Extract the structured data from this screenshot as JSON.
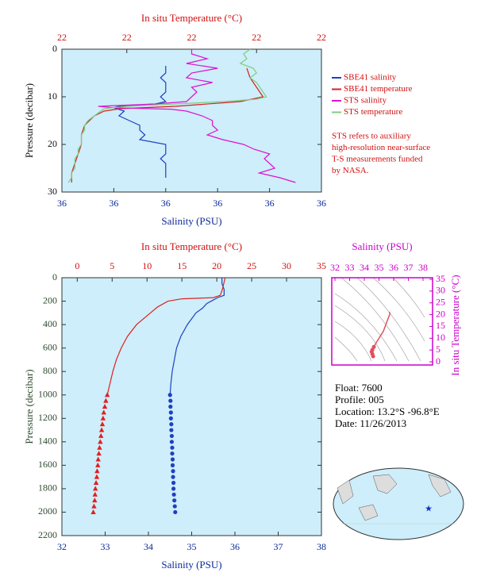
{
  "chart_data": [
    {
      "type": "profile",
      "x2label": "In situ Temperature (°C)",
      "xlabel": "Salinity (PSU)",
      "ylabel": "Pressure (decibar)",
      "ylim": [
        0,
        30
      ],
      "yticks": [
        0,
        10,
        20,
        30
      ],
      "xlim": [
        35.75,
        36.25
      ],
      "xticks": [
        {
          "value": 35.75,
          "label": "36"
        },
        {
          "value": 35.85,
          "label": "36"
        },
        {
          "value": 35.95,
          "label": "36"
        },
        {
          "value": 36.05,
          "label": "36"
        },
        {
          "value": 36.15,
          "label": "36"
        },
        {
          "value": 36.25,
          "label": "36"
        }
      ],
      "x2lim": [
        21.6,
        22.4
      ],
      "x2ticks": [
        {
          "value": 21.6,
          "label": "22"
        },
        {
          "value": 21.8,
          "label": "22"
        },
        {
          "value": 22.0,
          "label": "22"
        },
        {
          "value": 22.2,
          "label": "22"
        },
        {
          "value": 22.4,
          "label": "22"
        }
      ],
      "series": [
        {
          "name": "SBE41 salinity",
          "color": "#2040c0",
          "axis": "x",
          "pressure": [
            3.5,
            5,
            6,
            7,
            8,
            9,
            10,
            11,
            11.5,
            12,
            12.3,
            13,
            14,
            15,
            16,
            17,
            18,
            19,
            20,
            21,
            22,
            23,
            24,
            25,
            26,
            27
          ],
          "values": [
            35.95,
            35.95,
            35.94,
            35.95,
            35.95,
            35.95,
            35.94,
            35.95,
            35.93,
            35.86,
            35.85,
            35.87,
            35.86,
            35.88,
            35.9,
            35.9,
            35.91,
            35.9,
            35.95,
            35.95,
            35.95,
            35.94,
            35.95,
            35.95,
            35.95,
            35.95
          ]
        },
        {
          "name": "SBE41 temperature",
          "color": "#d62020",
          "axis": "x2",
          "pressure": [
            4,
            6,
            8,
            10,
            11,
            12,
            12.5,
            13,
            14,
            16,
            18,
            20,
            22,
            24,
            26,
            28
          ],
          "values": [
            22.17,
            22.18,
            22.2,
            22.22,
            22.15,
            21.95,
            21.78,
            21.73,
            21.7,
            21.67,
            21.66,
            21.66,
            21.65,
            21.64,
            21.63,
            21.63
          ]
        },
        {
          "name": "STS salinity",
          "color": "#e010d0",
          "axis": "x",
          "pressure": [
            0,
            1,
            2,
            3,
            4,
            5,
            6,
            7,
            8,
            9,
            10,
            11,
            11.5,
            12,
            12.3,
            12.6,
            13,
            14,
            15,
            16,
            17,
            18,
            19,
            20,
            21,
            22,
            23,
            24,
            25,
            26,
            27,
            28
          ],
          "values": [
            36.0,
            36.0,
            36.03,
            35.99,
            36.05,
            36.0,
            35.99,
            36.04,
            36.0,
            36.01,
            36.0,
            35.99,
            35.93,
            35.82,
            35.85,
            35.96,
            35.99,
            36.02,
            36.04,
            36.04,
            36.05,
            36.03,
            36.06,
            36.1,
            36.12,
            36.15,
            36.14,
            36.15,
            36.16,
            36.13,
            36.17,
            36.2
          ]
        },
        {
          "name": "STS temperature",
          "color": "#80cc80",
          "axis": "x2",
          "pressure": [
            0,
            1,
            2,
            3,
            4,
            5,
            6,
            7,
            8,
            9,
            10,
            10.5,
            11,
            11.5,
            12,
            12.5,
            13,
            14,
            15,
            16,
            17,
            18,
            19,
            20,
            21,
            22,
            23,
            24,
            25,
            26,
            27,
            28
          ],
          "values": [
            22.18,
            22.16,
            22.17,
            22.15,
            22.19,
            22.2,
            22.18,
            22.2,
            22.21,
            22.22,
            22.23,
            22.2,
            22.1,
            21.95,
            21.8,
            21.73,
            21.72,
            21.7,
            21.68,
            21.67,
            21.67,
            21.66,
            21.66,
            21.66,
            21.65,
            21.65,
            21.64,
            21.64,
            21.64,
            21.63,
            21.63,
            21.62
          ]
        }
      ],
      "note": [
        "STS refers to auxiliary",
        "high-resolution near-surface",
        "T-S measurements funded",
        "by NASA."
      ]
    },
    {
      "type": "profile",
      "x2label": "In situ Temperature (°C)",
      "xlabel": "Salinity (PSU)",
      "ylabel": "Pressure (decibar)",
      "ylim": [
        0,
        2200
      ],
      "yticks": [
        0,
        200,
        400,
        600,
        800,
        1000,
        1200,
        1400,
        1600,
        1800,
        2000,
        2200
      ],
      "xlim": [
        32,
        38
      ],
      "xticks": [
        32,
        33,
        34,
        35,
        36,
        37,
        38
      ],
      "x2lim": [
        -2.2,
        35
      ],
      "x2ticks": [
        0,
        5,
        10,
        15,
        20,
        25,
        30,
        35
      ],
      "series": [
        {
          "color": "#2040c0",
          "axis": "x",
          "pressure": [
            0,
            50,
            100,
            150,
            170,
            190,
            220,
            260,
            300,
            400,
            500,
            600,
            700,
            800,
            900,
            1000
          ],
          "values": [
            35.7,
            35.7,
            35.75,
            35.75,
            35.6,
            35.5,
            35.35,
            35.25,
            35.1,
            34.9,
            34.75,
            34.65,
            34.6,
            34.55,
            34.52,
            34.5
          ]
        },
        {
          "color": "#2040c0",
          "axis": "x",
          "marker": "circle",
          "pressure": [
            1000,
            1050,
            1100,
            1150,
            1200,
            1250,
            1300,
            1350,
            1400,
            1450,
            1500,
            1550,
            1600,
            1650,
            1700,
            1750,
            1800,
            1850,
            1900,
            1950,
            2000
          ],
          "values": [
            34.5,
            34.51,
            34.51,
            34.52,
            34.52,
            34.53,
            34.53,
            34.54,
            34.54,
            34.55,
            34.55,
            34.56,
            34.56,
            34.57,
            34.57,
            34.58,
            34.58,
            34.59,
            34.6,
            34.61,
            34.62
          ]
        },
        {
          "color": "#e02020",
          "axis": "x2",
          "pressure": [
            0,
            50,
            100,
            150,
            170,
            180,
            200,
            250,
            300,
            400,
            500,
            600,
            700,
            800,
            900,
            1000
          ],
          "values": [
            21.2,
            21.0,
            20.8,
            20.5,
            19.5,
            15,
            13,
            11.5,
            10.5,
            8.5,
            7.2,
            6.3,
            5.6,
            5.1,
            4.7,
            4.3
          ]
        },
        {
          "color": "#e02020",
          "axis": "x2",
          "marker": "triangle",
          "pressure": [
            1000,
            1050,
            1100,
            1150,
            1200,
            1250,
            1300,
            1350,
            1400,
            1450,
            1500,
            1550,
            1600,
            1650,
            1700,
            1750,
            1800,
            1850,
            1900,
            1950,
            2000
          ],
          "values": [
            4.3,
            4.1,
            3.95,
            3.8,
            3.7,
            3.6,
            3.5,
            3.4,
            3.3,
            3.2,
            3.1,
            3.0,
            2.95,
            2.85,
            2.8,
            2.7,
            2.6,
            2.55,
            2.5,
            2.4,
            2.3
          ]
        }
      ]
    },
    {
      "type": "ts",
      "xlabel": "Salinity (PSU)",
      "ylabel": "In situ Temperature (°C)",
      "xlim": [
        32,
        38
      ],
      "xticks": [
        32,
        33,
        34,
        35,
        36,
        37,
        38
      ],
      "ylim": [
        0,
        35
      ],
      "yticks": [
        0,
        5,
        10,
        15,
        20,
        25,
        30,
        35
      ],
      "series": [
        {
          "color": "#e05060",
          "salinity": [
            35.7,
            35.75,
            35.6,
            35.3,
            35.0,
            34.8,
            34.65,
            34.55,
            34.5,
            34.55,
            34.6
          ],
          "values": [
            21.2,
            20.5,
            18,
            13,
            10,
            8,
            6.3,
            5.1,
            4.3,
            3.3,
            2.3
          ]
        }
      ]
    }
  ],
  "info": [
    "Float:  7600",
    "Profile:  005",
    "Location:  13.2°S  -96.8°E",
    "Date:  11/26/2013"
  ]
}
